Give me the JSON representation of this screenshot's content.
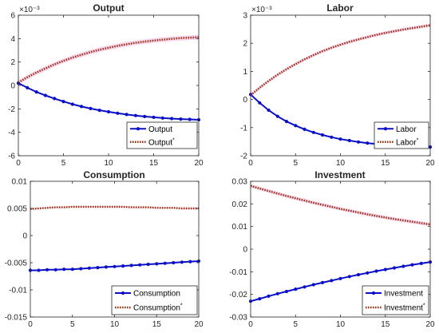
{
  "colors": {
    "home": "#0b10c8",
    "foreign": "#a0300f",
    "band": "#f4d6ef",
    "axis": "#262626"
  },
  "chart_data": [
    {
      "type": "line",
      "title": "Output",
      "exponent": "×10⁻³",
      "xlim": [
        0,
        20
      ],
      "ylim": [
        -6,
        6
      ],
      "xticks": [
        0,
        5,
        10,
        15,
        20
      ],
      "yticks": [
        -6,
        -4,
        -2,
        0,
        2,
        4,
        6
      ],
      "xtick_labels": [
        "0",
        "5",
        "10",
        "15",
        "20"
      ],
      "ytick_labels": [
        "-6",
        "-4",
        "-2",
        "0",
        "2",
        "4",
        "6"
      ],
      "legend": "bottom-right",
      "x": [
        0,
        1,
        2,
        3,
        4,
        5,
        6,
        7,
        8,
        9,
        10,
        11,
        12,
        13,
        14,
        15,
        16,
        17,
        18,
        19,
        20
      ],
      "series": [
        {
          "name": "Output",
          "style": "solid-markers",
          "values": [
            0.2,
            -0.2,
            -0.55,
            -0.85,
            -1.12,
            -1.37,
            -1.6,
            -1.8,
            -1.97,
            -2.12,
            -2.25,
            -2.37,
            -2.48,
            -2.57,
            -2.65,
            -2.72,
            -2.78,
            -2.83,
            -2.87,
            -2.9,
            -2.93
          ]
        },
        {
          "name": "Output",
          "superscript": "*",
          "style": "dotted",
          "band": 0.2,
          "values": [
            0.25,
            0.7,
            1.1,
            1.45,
            1.8,
            2.1,
            2.38,
            2.62,
            2.85,
            3.05,
            3.22,
            3.38,
            3.52,
            3.64,
            3.74,
            3.83,
            3.91,
            3.98,
            4.04,
            4.08,
            4.12
          ]
        }
      ]
    },
    {
      "type": "line",
      "title": "Labor",
      "exponent": "×10⁻³",
      "xlim": [
        0,
        20
      ],
      "ylim": [
        -2,
        3
      ],
      "xticks": [
        0,
        5,
        10,
        15,
        20
      ],
      "yticks": [
        -2,
        -1,
        0,
        1,
        2,
        3
      ],
      "xtick_labels": [
        "0",
        "5",
        "10",
        "15",
        "20"
      ],
      "ytick_labels": [
        "-2",
        "-1",
        "0",
        "1",
        "2",
        "3"
      ],
      "legend": "bottom-right",
      "x": [
        0,
        1,
        2,
        3,
        4,
        5,
        6,
        7,
        8,
        9,
        10,
        11,
        12,
        13,
        14,
        15,
        16,
        17,
        18,
        19,
        20
      ],
      "series": [
        {
          "name": "Labor",
          "style": "solid-markers",
          "values": [
            0.18,
            -0.12,
            -0.38,
            -0.6,
            -0.78,
            -0.93,
            -1.06,
            -1.17,
            -1.26,
            -1.34,
            -1.41,
            -1.46,
            -1.51,
            -1.55,
            -1.58,
            -1.61,
            -1.63,
            -1.65,
            -1.67,
            -1.68,
            -1.69
          ]
        },
        {
          "name": "Labor",
          "superscript": "*",
          "style": "dotted",
          "band": 0.06,
          "values": [
            0.15,
            0.42,
            0.66,
            0.88,
            1.08,
            1.26,
            1.43,
            1.58,
            1.72,
            1.84,
            1.95,
            2.05,
            2.14,
            2.22,
            2.3,
            2.37,
            2.43,
            2.49,
            2.54,
            2.59,
            2.64
          ]
        }
      ]
    },
    {
      "type": "line",
      "title": "Consumption",
      "xlim": [
        0,
        20
      ],
      "ylim": [
        -0.015,
        0.01
      ],
      "xticks": [
        0,
        5,
        10,
        15,
        20
      ],
      "yticks": [
        -0.015,
        -0.01,
        -0.005,
        0,
        0.005,
        0.01
      ],
      "xtick_labels": [
        "0",
        "5",
        "10",
        "15",
        "20"
      ],
      "ytick_labels": [
        "-0.015",
        "-0.01",
        "-0.005",
        "0",
        "0.005",
        "0.01"
      ],
      "legend": "bottom-right",
      "x": [
        0,
        1,
        2,
        3,
        4,
        5,
        6,
        7,
        8,
        9,
        10,
        11,
        12,
        13,
        14,
        15,
        16,
        17,
        18,
        19,
        20
      ],
      "series": [
        {
          "name": "Consumption",
          "style": "solid-markers",
          "values": [
            -0.0064,
            -0.0064,
            -0.0063,
            -0.0063,
            -0.0062,
            -0.0062,
            -0.0061,
            -0.006,
            -0.0059,
            -0.0058,
            -0.0057,
            -0.0056,
            -0.0055,
            -0.0054,
            -0.0053,
            -0.0052,
            -0.0051,
            -0.005,
            -0.0049,
            -0.0048,
            -0.0047
          ]
        },
        {
          "name": "Consumption",
          "superscript": "*",
          "style": "dotted",
          "band": 0.00012,
          "values": [
            0.0049,
            0.005,
            0.0051,
            0.0052,
            0.0052,
            0.0053,
            0.0053,
            0.0053,
            0.0053,
            0.0053,
            0.0053,
            0.0053,
            0.0052,
            0.0052,
            0.0052,
            0.0051,
            0.0051,
            0.0051,
            0.005,
            0.005,
            0.005
          ]
        }
      ]
    },
    {
      "type": "line",
      "title": "Investment",
      "xlim": [
        0,
        20
      ],
      "ylim": [
        -0.03,
        0.03
      ],
      "xticks": [
        0,
        5,
        10,
        15,
        20
      ],
      "yticks": [
        -0.03,
        -0.02,
        -0.01,
        0,
        0.01,
        0.02,
        0.03
      ],
      "xtick_labels": [
        "0",
        "5",
        "10",
        "15",
        "20"
      ],
      "ytick_labels": [
        "-0.03",
        "-0.02",
        "-0.01",
        "0",
        "0.01",
        "0.02",
        "0.03"
      ],
      "legend": "bottom-right",
      "x": [
        0,
        1,
        2,
        3,
        4,
        5,
        6,
        7,
        8,
        9,
        10,
        11,
        12,
        13,
        14,
        15,
        16,
        17,
        18,
        19,
        20
      ],
      "series": [
        {
          "name": "Investment",
          "style": "solid-markers",
          "values": [
            -0.023,
            -0.0219,
            -0.0208,
            -0.0197,
            -0.0187,
            -0.0177,
            -0.0167,
            -0.0157,
            -0.0148,
            -0.0139,
            -0.013,
            -0.0121,
            -0.0113,
            -0.0105,
            -0.0097,
            -0.009,
            -0.0083,
            -0.0076,
            -0.0069,
            -0.0063,
            -0.0057
          ]
        },
        {
          "name": "Investment",
          "superscript": "*",
          "style": "dotted",
          "band": 0.0008,
          "values": [
            0.028,
            0.0268,
            0.0257,
            0.0246,
            0.0235,
            0.0225,
            0.0215,
            0.0205,
            0.0196,
            0.0187,
            0.0178,
            0.017,
            0.0162,
            0.0154,
            0.0147,
            0.014,
            0.0133,
            0.0127,
            0.0121,
            0.0115,
            0.0109
          ]
        }
      ]
    }
  ]
}
